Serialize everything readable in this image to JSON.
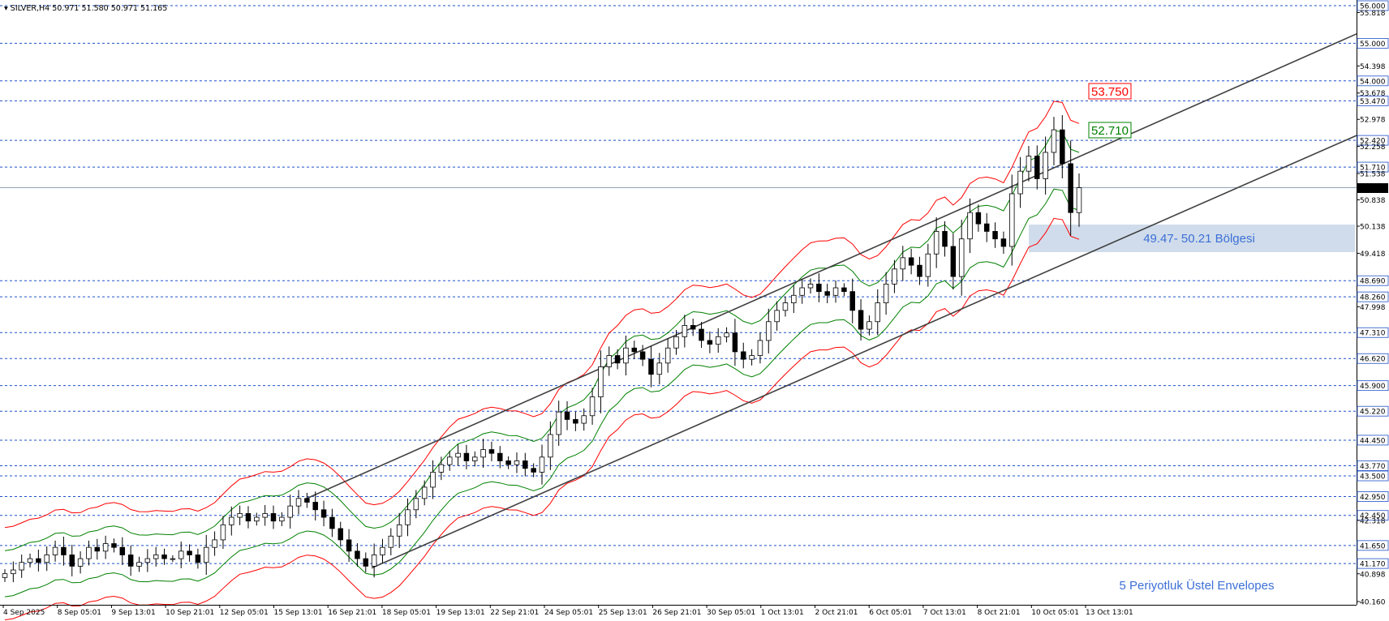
{
  "header": {
    "symbol": "SILVER,H4",
    "ohlc": "50.971 51.580 50.971 51.165"
  },
  "chart_data": {
    "type": "candlestick",
    "y_range": [
      40.16,
      56.0
    ],
    "price_ticks": [
      "56.000",
      "55.818",
      "55.000",
      "54.398",
      "54.000",
      "53.678",
      "53.470",
      "52.978",
      "52.420",
      "52.258",
      "51.710",
      "51.538",
      "51.165",
      "50.838",
      "50.138",
      "49.418",
      "48.690",
      "48.260",
      "47.998",
      "47.310",
      "46.620",
      "45.900",
      "45.220",
      "44.450",
      "43.770",
      "43.500",
      "42.950",
      "42.450",
      "42.318",
      "41.650",
      "41.170",
      "40.898",
      "40.160"
    ],
    "levels": [
      56.0,
      55.0,
      54.0,
      53.47,
      52.42,
      51.71,
      48.69,
      48.26,
      47.31,
      46.62,
      45.9,
      45.22,
      44.45,
      43.77,
      43.5,
      42.95,
      42.45,
      41.65,
      41.17
    ],
    "current_price": "51.165",
    "date_labels": [
      "4 Sep 2025",
      "8 Sep 05:01",
      "9 Sep 13:01",
      "10 Sep 21:01",
      "12 Sep 05:01",
      "15 Sep 13:01",
      "16 Sep 21:01",
      "18 Sep 05:01",
      "19 Sep 13:01",
      "22 Sep 21:01",
      "24 Sep 05:01",
      "25 Sep 13:01",
      "26 Sep 21:01",
      "30 Sep 05:01",
      "1 Oct 13:01",
      "2 Oct 21:01",
      "6 Oct 05:01",
      "7 Oct 13:01",
      "8 Oct 21:01",
      "10 Oct 05:01",
      "13 Oct 13:01"
    ],
    "close_series": [
      40.9,
      41.0,
      41.2,
      41.3,
      41.2,
      41.4,
      41.6,
      41.4,
      41.1,
      41.3,
      41.6,
      41.5,
      41.7,
      41.6,
      41.4,
      41.1,
      41.2,
      41.3,
      41.4,
      41.3,
      41.3,
      41.5,
      41.4,
      41.2,
      41.6,
      41.8,
      42.2,
      42.4,
      42.5,
      42.3,
      42.4,
      42.5,
      42.3,
      42.4,
      42.7,
      42.9,
      42.8,
      42.6,
      42.4,
      42.1,
      41.8,
      41.5,
      41.3,
      41.1,
      41.4,
      41.6,
      41.9,
      42.2,
      42.6,
      42.9,
      43.2,
      43.6,
      43.8,
      44.0,
      44.1,
      43.9,
      44.0,
      44.2,
      44.1,
      43.9,
      43.8,
      43.9,
      43.7,
      43.6,
      44.0,
      44.6,
      45.2,
      45.0,
      44.9,
      45.1,
      45.6,
      46.4,
      46.7,
      46.5,
      46.9,
      46.8,
      46.6,
      46.2,
      46.5,
      46.9,
      47.2,
      47.5,
      47.4,
      47.1,
      47.0,
      47.2,
      47.3,
      46.8,
      46.6,
      46.7,
      47.1,
      47.6,
      47.9,
      48.1,
      48.3,
      48.5,
      48.6,
      48.4,
      48.3,
      48.5,
      48.4,
      47.9,
      47.4,
      47.6,
      48.1,
      48.6,
      49.0,
      49.3,
      49.1,
      48.8,
      49.4,
      50.0,
      49.6,
      48.8,
      49.8,
      50.5,
      50.2,
      50.0,
      49.8,
      49.6,
      51.0,
      51.6,
      52.0,
      51.4,
      52.1,
      52.7,
      51.8,
      50.5,
      51.16
    ],
    "upper_channel": {
      "from": [
        42.9,
        "15 Sep 13:01"
      ],
      "to": [
        55.25,
        "right edge"
      ]
    },
    "lower_channel": {
      "from": [
        41.05,
        "18 Sep 05:01"
      ],
      "to": [
        52.55,
        "right edge"
      ]
    },
    "annotations": {
      "red_label": "53.750",
      "green_label": "52.710",
      "zone_label": "49.47- 50.21 Bölgesi",
      "indicator_label": "5 Periyotluk Üstel Envelopes"
    },
    "colors": {
      "bull": "#ffffff",
      "bear": "#000000",
      "envelope_outer": "#ff0000",
      "envelope_inner": "#008000",
      "level_line": "#1e50c8",
      "channel": "#404040",
      "zone": "#b0c4de",
      "annotation_blue": "#3c6fd6"
    }
  }
}
